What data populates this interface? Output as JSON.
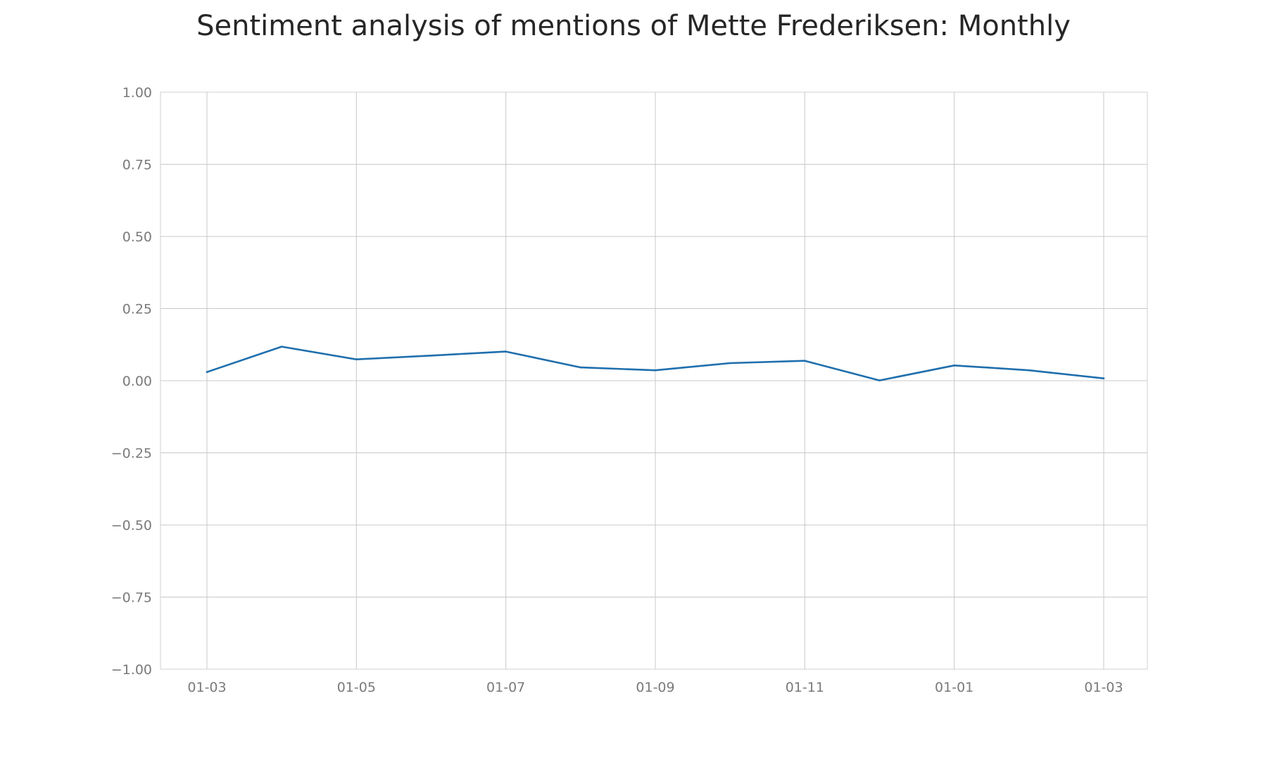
{
  "chart_data": {
    "type": "line",
    "title": "Sentiment analysis of mentions of Mette Frederiksen: Monthly",
    "xlabel": "",
    "ylabel": "",
    "ylim": [
      -1.0,
      1.0
    ],
    "y_ticks": [
      1.0,
      0.75,
      0.5,
      0.25,
      0.0,
      -0.25,
      -0.5,
      -0.75,
      -1.0
    ],
    "y_tick_labels": [
      "1.00",
      "0.75",
      "0.50",
      "0.25",
      "0.00",
      "−0.25",
      "−0.50",
      "−0.75",
      "−1.00"
    ],
    "x_tick_labels": [
      "01-03",
      "01-05",
      "01-07",
      "01-09",
      "01-11",
      "01-01",
      "01-03"
    ],
    "x_tick_month_index": [
      0,
      2,
      4,
      6,
      8,
      10,
      12
    ],
    "grid": true,
    "series": [
      {
        "color": "#1f6fad",
        "values": [
          0.03,
          0.118,
          0.074,
          0.087,
          0.101,
          0.046,
          0.036,
          0.061,
          0.069,
          0.001,
          0.053,
          0.036,
          0.008
        ]
      }
    ]
  }
}
